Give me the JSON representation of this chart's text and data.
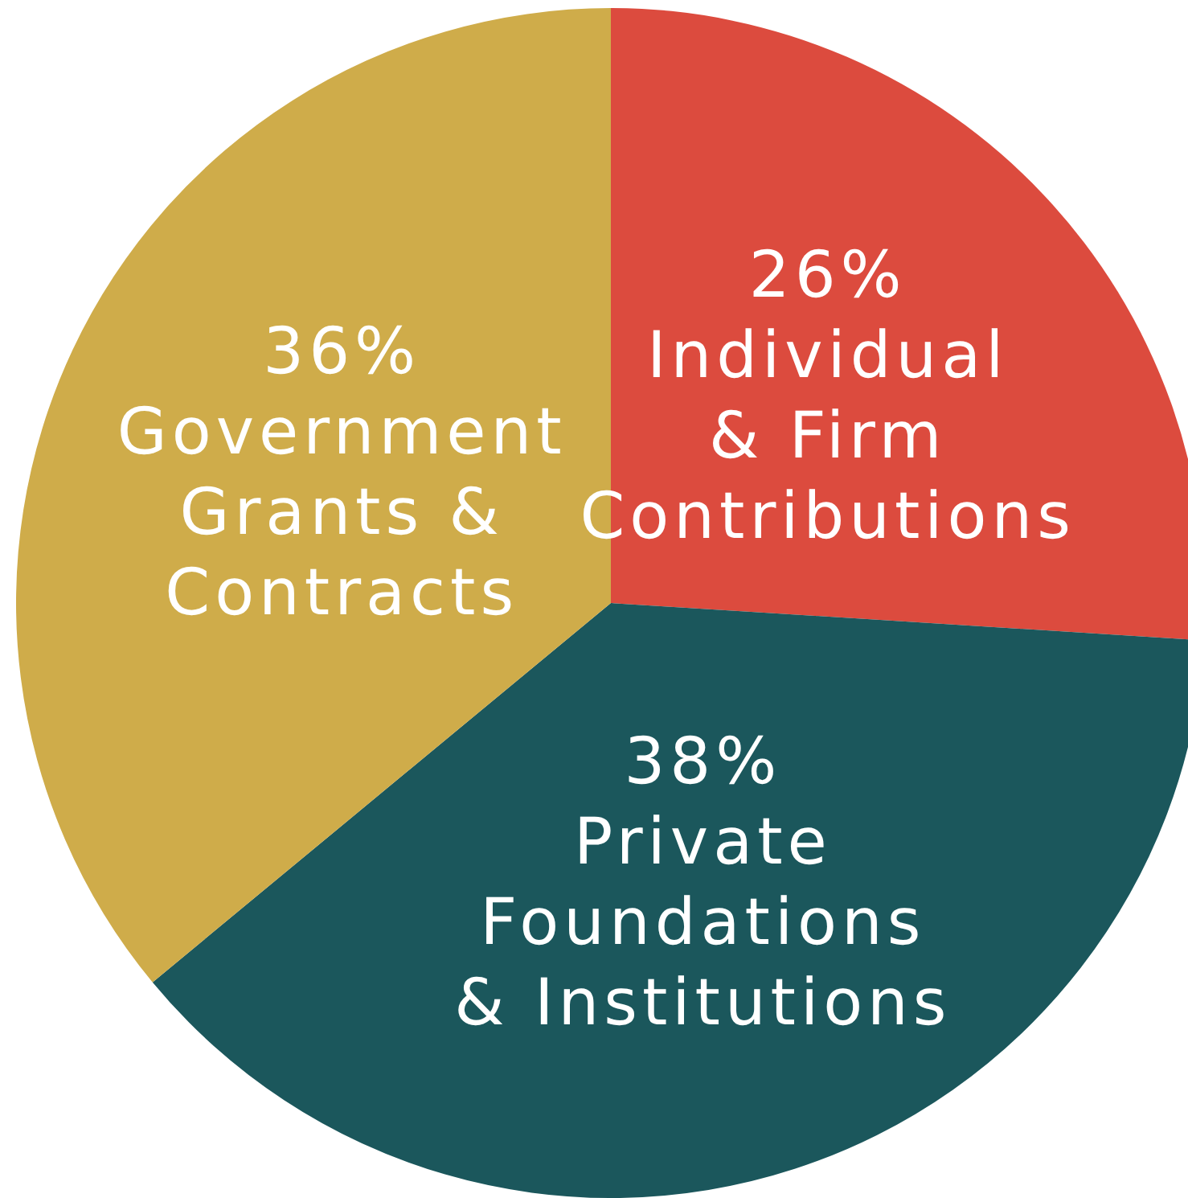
{
  "chart_data": {
    "type": "pie",
    "categories": [
      "Individual\n& Firm\nContributions",
      "Private\nFoundations\n& Institutions",
      "Government\nGrants &\nContracts"
    ],
    "values": [
      26,
      38,
      36
    ],
    "colors": [
      "#dc4b3e",
      "#1b575c",
      "#cfac4a"
    ],
    "value_labels": [
      "26%",
      "38%",
      "36%"
    ]
  }
}
